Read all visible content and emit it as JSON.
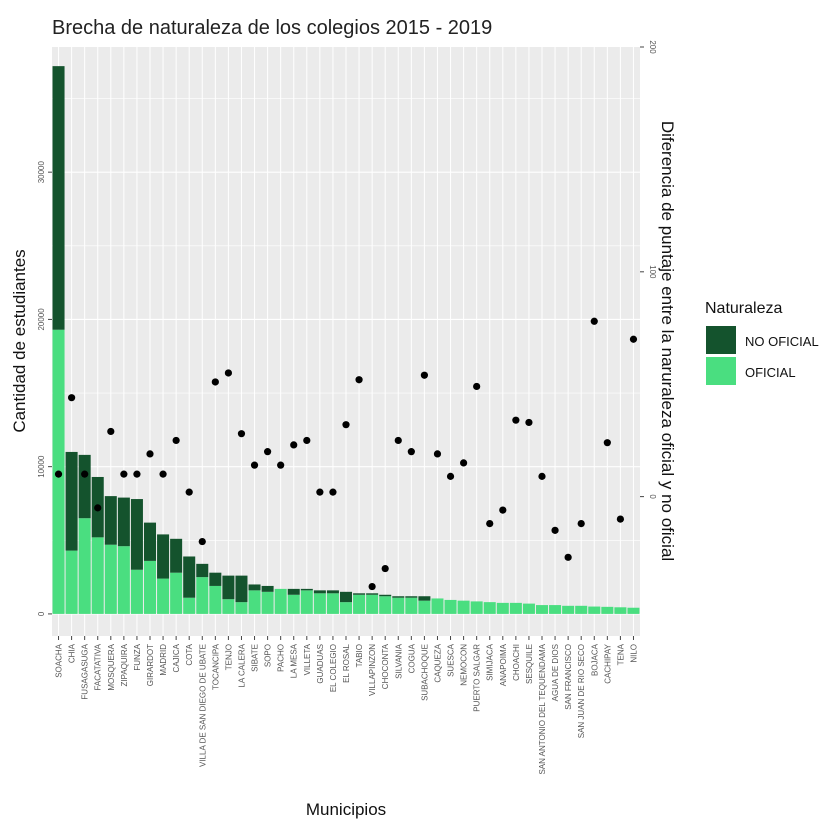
{
  "chart_data": {
    "type": "bar",
    "title": "Brecha de naturaleza de los colegios 2015 - 2019",
    "xlabel": "Municipios",
    "ylabel": "Cantidad de estudiantes",
    "y2label": "Diferencia de puntaje entre la naruraleza oficial y no oficial",
    "ylim": [
      -1500,
      38500
    ],
    "y2lim": [
      -62,
      200
    ],
    "yticks": [
      0,
      10000,
      20000,
      30000
    ],
    "y2ticks": [
      0,
      100,
      200
    ],
    "stacked": true,
    "grid": true,
    "legend_position": "right",
    "legend_title": "Naturaleza",
    "colors": {
      "NO OFICIAL": "#14532d",
      "OFICIAL": "#4ade80",
      "points": "#000000",
      "panel": "#ebebeb",
      "grid": "#ffffff"
    },
    "categories": [
      "SOACHA",
      "CHIA",
      "FUSAGASUGA",
      "FACATATIVA",
      "MOSQUERA",
      "ZIPAQUIRA",
      "FUNZA",
      "GIRARDOT",
      "MADRID",
      "CAJICA",
      "COTA",
      "VILLA DE SAN DIEGO DE UBATE",
      "TOCANCIPA",
      "TENJO",
      "LA CALERA",
      "SIBATE",
      "SOPO",
      "PACHO",
      "LA MESA",
      "VILLETA",
      "GUADUAS",
      "EL COLEGIO",
      "EL ROSAL",
      "TABIO",
      "VILLAPINZON",
      "CHOCONTA",
      "SILVANIA",
      "COGUA",
      "SUBACHOQUE",
      "CAQUEZA",
      "SUESCA",
      "NEMOCON",
      "PUERTO SALGAR",
      "SIMIJACA",
      "ANAPOIMA",
      "CHOACHI",
      "SESQUILE",
      "SAN ANTONIO DEL TEQUENDAMA",
      "AGUA DE DIOS",
      "SAN FRANCISCO",
      "SAN JUAN DE RIO SECO",
      "BOJACA",
      "CACHIPAY",
      "TENA",
      "NILO"
    ],
    "series": [
      {
        "name": "OFICIAL",
        "values": [
          19300,
          4300,
          6500,
          5200,
          4700,
          4600,
          3000,
          3600,
          2400,
          2800,
          1100,
          2500,
          1900,
          1000,
          800,
          1600,
          1500,
          1700,
          1300,
          1600,
          1400,
          1400,
          800,
          1300,
          1300,
          1200,
          1100,
          1100,
          900,
          1050,
          950,
          900,
          850,
          800,
          750,
          750,
          700,
          600,
          600,
          550,
          550,
          500,
          480,
          450,
          420
        ]
      },
      {
        "name": "NO OFICIAL",
        "values": [
          17900,
          6700,
          4300,
          4100,
          3300,
          3300,
          4800,
          2600,
          3000,
          2300,
          2800,
          900,
          900,
          1600,
          1800,
          400,
          400,
          0,
          400,
          100,
          200,
          200,
          700,
          100,
          100,
          100,
          100,
          100,
          300,
          0,
          0,
          0,
          0,
          0,
          0,
          0,
          0,
          0,
          0,
          0,
          0,
          0,
          0,
          0,
          0
        ]
      },
      {
        "name": "Diferencia de puntaje",
        "values": [
          10,
          44,
          10,
          -5,
          29,
          10,
          10,
          19,
          10,
          25,
          2,
          -20,
          51,
          55,
          28,
          14,
          20,
          14,
          23,
          25,
          2,
          2,
          32,
          52,
          -40,
          -32,
          25,
          20,
          54,
          19,
          9,
          15,
          49,
          -12,
          -6,
          34,
          33,
          9,
          -15,
          -27,
          -12,
          78,
          24,
          -10,
          70
        ]
      }
    ]
  }
}
